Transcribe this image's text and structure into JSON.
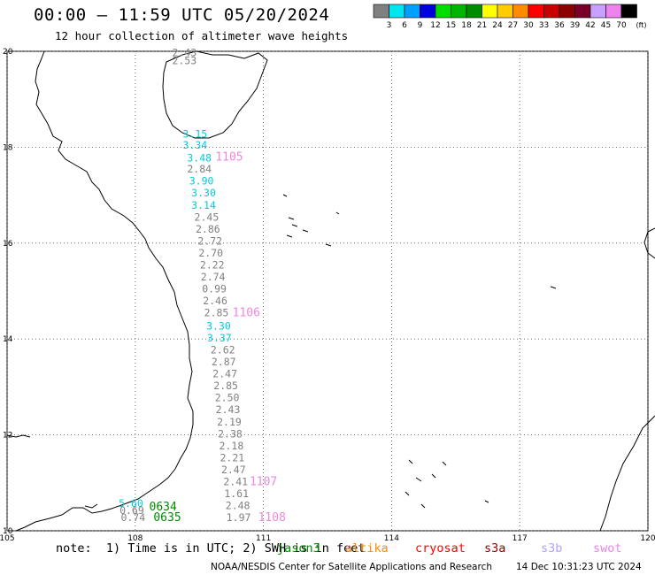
{
  "header": {
    "title": "00:00 – 11:59 UTC 05/20/2024",
    "subtitle": "12 hour collection of altimeter wave heights"
  },
  "legend": {
    "unit": "(ft)",
    "bins": [
      {
        "label": "3",
        "color": "#808080"
      },
      {
        "label": "6",
        "color": "#00e5ee"
      },
      {
        "label": "9",
        "color": "#00a0ff"
      },
      {
        "label": "12",
        "color": "#0000dd"
      },
      {
        "label": "15",
        "color": "#00dd00"
      },
      {
        "label": "18",
        "color": "#00b400"
      },
      {
        "label": "21",
        "color": "#008c00"
      },
      {
        "label": "24",
        "color": "#ffff00"
      },
      {
        "label": "27",
        "color": "#ffcc00"
      },
      {
        "label": "30",
        "color": "#ff8c00"
      },
      {
        "label": "33",
        "color": "#ff0000"
      },
      {
        "label": "36",
        "color": "#c80000"
      },
      {
        "label": "39",
        "color": "#8c0000"
      },
      {
        "label": "42",
        "color": "#780028"
      },
      {
        "label": "45",
        "color": "#c8a0ff"
      },
      {
        "label": "70",
        "color": "#ee82ee"
      },
      {
        "label": "",
        "color": "#000000"
      }
    ]
  },
  "map": {
    "x_ticks": [
      "105",
      "108",
      "111",
      "114",
      "117",
      "120"
    ],
    "y_ticks": [
      "10",
      "12",
      "14",
      "16",
      "18",
      "20"
    ],
    "lon_range": [
      105,
      120
    ],
    "lat_range": [
      10,
      20
    ],
    "track_color_gray": "#808080",
    "track_color_cyan": "#00ccdd",
    "time_color_pink": "#ee88dd",
    "time_color_green": "#008c00",
    "main_track": [
      {
        "v": "2.43",
        "c": "g",
        "lon": 109.15,
        "lat": 19.9
      },
      {
        "v": "2.53",
        "c": "g",
        "lon": 109.15,
        "lat": 19.73
      },
      {
        "v": "3.15",
        "c": "c",
        "lon": 109.4,
        "lat": 18.2
      },
      {
        "v": "3.34",
        "c": "c",
        "lon": 109.4,
        "lat": 17.97
      },
      {
        "v": "3.48",
        "c": "c",
        "lon": 109.5,
        "lat": 17.7
      },
      {
        "v": "2.84",
        "c": "g",
        "lon": 109.5,
        "lat": 17.47
      },
      {
        "v": "3.90",
        "c": "c",
        "lon": 109.55,
        "lat": 17.22
      },
      {
        "v": "3.30",
        "c": "c",
        "lon": 109.6,
        "lat": 16.97
      },
      {
        "v": "3.14",
        "c": "c",
        "lon": 109.6,
        "lat": 16.72
      },
      {
        "v": "2.45",
        "c": "g",
        "lon": 109.67,
        "lat": 16.47
      },
      {
        "v": "2.86",
        "c": "g",
        "lon": 109.7,
        "lat": 16.22
      },
      {
        "v": "2.72",
        "c": "g",
        "lon": 109.75,
        "lat": 15.97
      },
      {
        "v": "2.70",
        "c": "g",
        "lon": 109.77,
        "lat": 15.72
      },
      {
        "v": "2.22",
        "c": "g",
        "lon": 109.8,
        "lat": 15.47
      },
      {
        "v": "2.74",
        "c": "g",
        "lon": 109.82,
        "lat": 15.22
      },
      {
        "v": "0.99",
        "c": "g",
        "lon": 109.85,
        "lat": 14.97
      },
      {
        "v": "2.46",
        "c": "g",
        "lon": 109.87,
        "lat": 14.72
      },
      {
        "v": "2.85",
        "c": "g",
        "lon": 109.9,
        "lat": 14.47
      },
      {
        "v": "3.30",
        "c": "c",
        "lon": 109.95,
        "lat": 14.2
      },
      {
        "v": "3.37",
        "c": "c",
        "lon": 109.97,
        "lat": 13.95
      },
      {
        "v": "2.62",
        "c": "g",
        "lon": 110.05,
        "lat": 13.7
      },
      {
        "v": "2.87",
        "c": "g",
        "lon": 110.07,
        "lat": 13.45
      },
      {
        "v": "2.47",
        "c": "g",
        "lon": 110.1,
        "lat": 13.2
      },
      {
        "v": "2.85",
        "c": "g",
        "lon": 110.12,
        "lat": 12.95
      },
      {
        "v": "2.50",
        "c": "g",
        "lon": 110.15,
        "lat": 12.7
      },
      {
        "v": "2.43",
        "c": "g",
        "lon": 110.17,
        "lat": 12.45
      },
      {
        "v": "2.19",
        "c": "g",
        "lon": 110.2,
        "lat": 12.2
      },
      {
        "v": "2.38",
        "c": "g",
        "lon": 110.22,
        "lat": 11.95
      },
      {
        "v": "2.18",
        "c": "g",
        "lon": 110.25,
        "lat": 11.7
      },
      {
        "v": "2.21",
        "c": "g",
        "lon": 110.27,
        "lat": 11.45
      },
      {
        "v": "2.47",
        "c": "g",
        "lon": 110.3,
        "lat": 11.2
      },
      {
        "v": "2.41",
        "c": "g",
        "lon": 110.35,
        "lat": 10.95
      },
      {
        "v": "1.61",
        "c": "g",
        "lon": 110.37,
        "lat": 10.7
      },
      {
        "v": "2.48",
        "c": "g",
        "lon": 110.4,
        "lat": 10.45
      },
      {
        "v": "1.97",
        "c": "g",
        "lon": 110.42,
        "lat": 10.2
      }
    ],
    "side_track": [
      {
        "v": "5.60",
        "c": "c",
        "lon": 107.9,
        "lat": 10.5
      },
      {
        "v": "0.69",
        "c": "g",
        "lon": 107.92,
        "lat": 10.35
      },
      {
        "v": "0.74",
        "c": "g",
        "lon": 107.95,
        "lat": 10.2
      }
    ],
    "time_labels": [
      {
        "t": "1105",
        "c": "p",
        "lon": 110.2,
        "lat": 17.72
      },
      {
        "t": "1106",
        "c": "p",
        "lon": 110.6,
        "lat": 14.47
      },
      {
        "t": "1107",
        "c": "p",
        "lon": 111.0,
        "lat": 10.95
      },
      {
        "t": "1108",
        "c": "p",
        "lon": 111.2,
        "lat": 10.2
      },
      {
        "t": "0634",
        "c": "gr",
        "lon": 108.65,
        "lat": 10.42
      },
      {
        "t": "0635",
        "c": "gr",
        "lon": 108.75,
        "lat": 10.2
      }
    ]
  },
  "note": {
    "prefix": "note:  1) Time is in UTC; 2) SWH is in feet",
    "satellites": [
      {
        "name": "jason3",
        "color": "#008c00"
      },
      {
        "name": "altika",
        "color": "#ff8c00"
      },
      {
        "name": "cryosat",
        "color": "#ff0000"
      },
      {
        "name": "s3a",
        "color": "#8c0000"
      },
      {
        "name": "s3b",
        "color": "#b4a0ff"
      },
      {
        "name": "swot",
        "color": "#ee82ee"
      }
    ]
  },
  "footer": {
    "center": "NOAA/NESDIS Center for Satellite Applications and Research",
    "timestamp": "14 Dec 10:31:23 UTC 2024"
  }
}
